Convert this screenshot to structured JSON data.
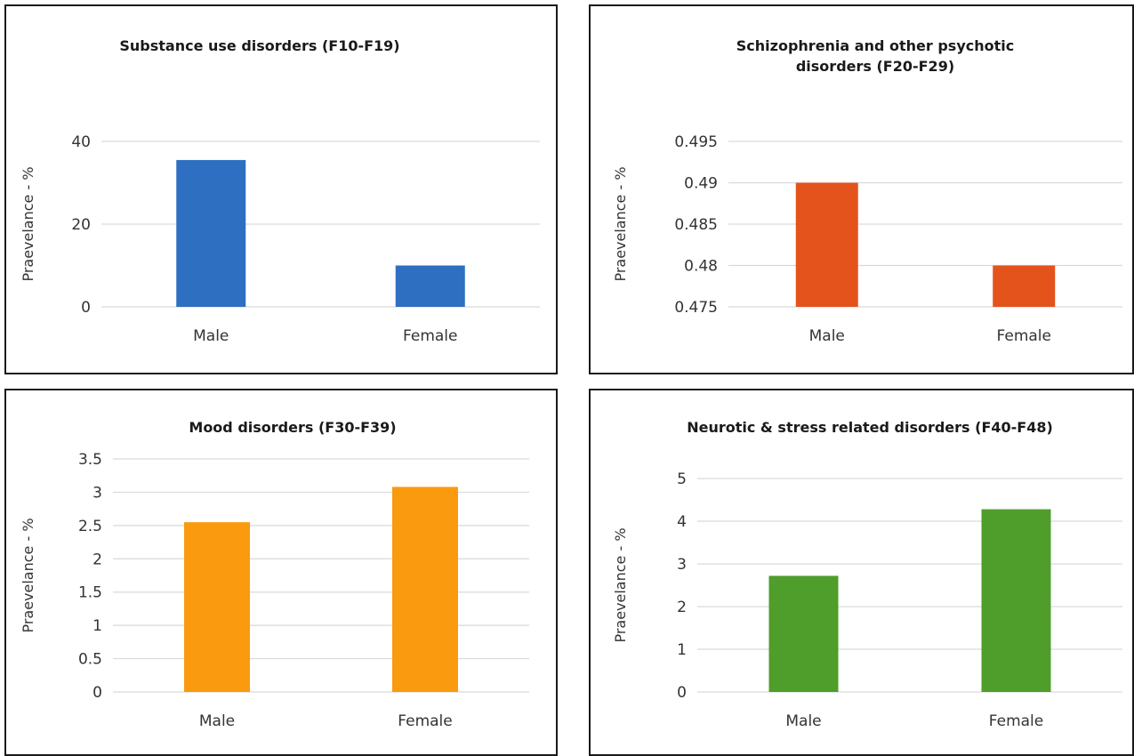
{
  "chart_data": [
    {
      "type": "bar",
      "title": [
        "Substance use disorders (F10-F19)"
      ],
      "ylabel": "Praevelance - %",
      "categories": [
        "Male",
        "Female"
      ],
      "series": [
        {
          "values": [
            35.5,
            10
          ]
        }
      ],
      "color": "#2e6fc1",
      "ylim": [
        0,
        40
      ],
      "yticks": [
        "0",
        "20",
        "40"
      ],
      "grid": true
    },
    {
      "type": "bar",
      "title": [
        "Schizophrenia and other psychotic",
        "disorders (F20-F29)"
      ],
      "ylabel": "Praevelance - %",
      "categories": [
        "Male",
        "Female"
      ],
      "series": [
        {
          "values": [
            0.49,
            0.48
          ]
        }
      ],
      "color": "#e3531b",
      "ylim": [
        0.475,
        0.495
      ],
      "yticks": [
        "0.475",
        "0.48",
        "0.485",
        "0.49",
        "0.495"
      ],
      "grid": true
    },
    {
      "type": "bar",
      "title": [
        "Mood disorders (F30-F39)"
      ],
      "ylabel": "Praevelance - %",
      "categories": [
        "Male",
        "Female"
      ],
      "series": [
        {
          "values": [
            2.55,
            3.08
          ]
        }
      ],
      "color": "#f99a0f",
      "ylim": [
        0,
        3.5
      ],
      "yticks": [
        "0",
        "0.5",
        "1",
        "1.5",
        "2",
        "2.5",
        "3",
        "3.5"
      ],
      "grid": true
    },
    {
      "type": "bar",
      "title": [
        "Neurotic & stress related disorders (F40-F48)"
      ],
      "ylabel": "Praevelance - %",
      "categories": [
        "Male",
        "Female"
      ],
      "series": [
        {
          "values": [
            2.72,
            4.28
          ]
        }
      ],
      "color": "#4f9d2a",
      "ylim": [
        0,
        5
      ],
      "yticks": [
        "0",
        "1",
        "2",
        "3",
        "4",
        "5"
      ],
      "grid": true
    }
  ]
}
